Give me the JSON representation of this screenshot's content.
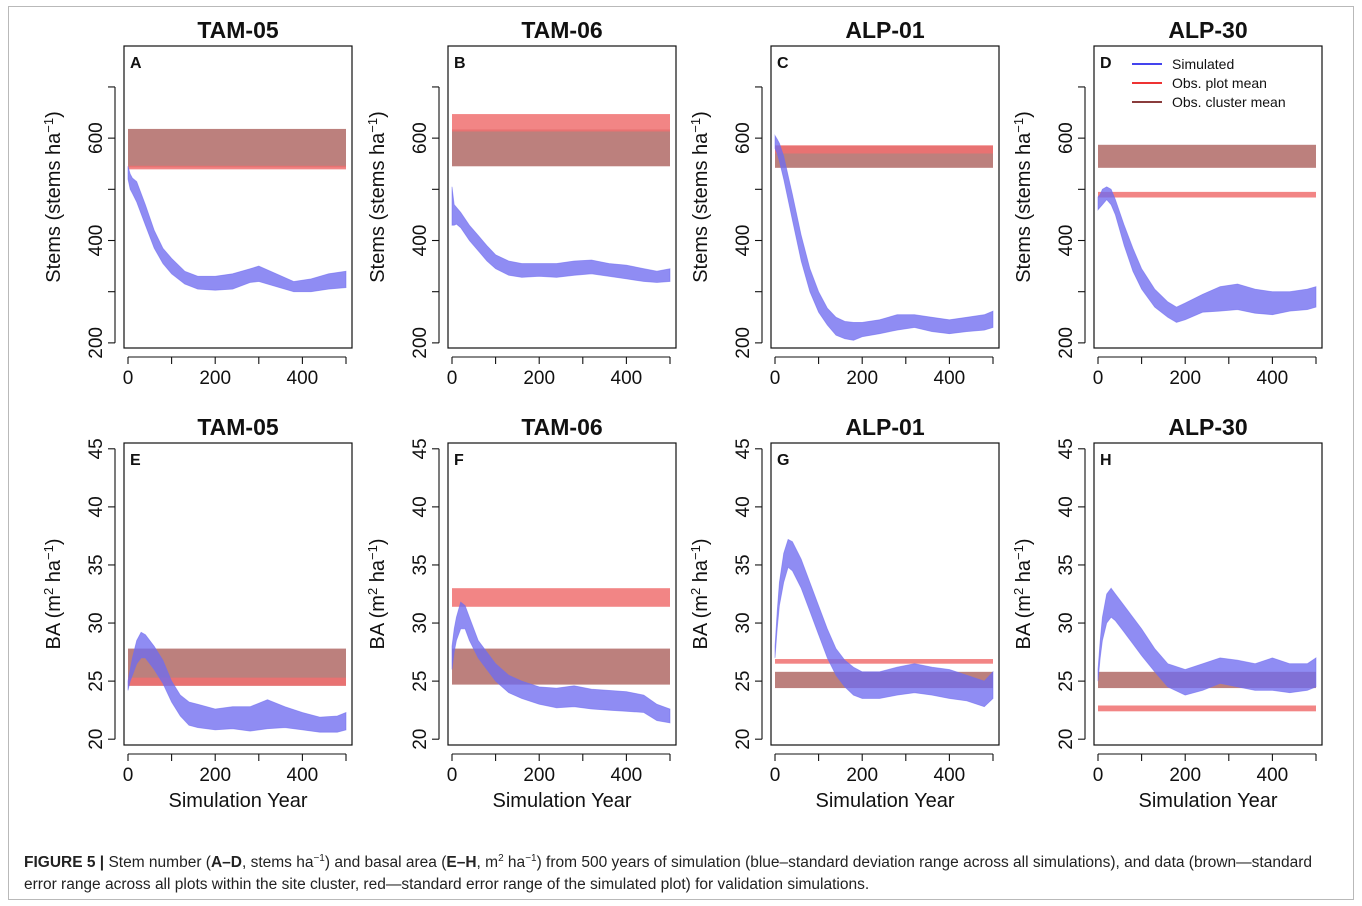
{
  "colors": {
    "simulated": "#6f6cf0",
    "obs_plot": "#f07070",
    "obs_cluster": "#b06a66",
    "obs_plot_line": "#ee2f2f",
    "obs_cluster_line": "#7a2f2f"
  },
  "legend": {
    "items": [
      {
        "label": "Simulated",
        "color": "#4444ee"
      },
      {
        "label": "Obs. plot mean",
        "color": "#ee3333"
      },
      {
        "label": "Obs. cluster mean",
        "color": "#8a3c3c"
      }
    ]
  },
  "caption": {
    "figure_label": "FIGURE 5 |",
    "t1": " Stem number (",
    "b1": "A–D",
    "t2": ", stems ha",
    "s1": "−1",
    "t3": ") and basal area (",
    "b2": "E–H",
    "t4": ", m",
    "s2": "2",
    "t5": " ha",
    "s3": "−1",
    "t6": ") from 500 years of simulation (blue–standard deviation range across all simulations), and data (brown—standard error range across all plots within the site cluster, red—standard error range of the simulated plot) for validation simulations."
  },
  "chart_data": [
    {
      "type": "area",
      "panel": "A",
      "title": "TAM-05",
      "xlabel": "",
      "ylabel_main": "Stems (stems ha",
      "ylabel_sup": "−1",
      "ylabel_end": ")",
      "xlim": [
        0,
        500
      ],
      "ylim": [
        190,
        780
      ],
      "xticks": [
        0,
        200,
        400
      ],
      "yticks": [
        200,
        400,
        600
      ],
      "obs_cluster": [
        543,
        618
      ],
      "obs_plot": [
        539,
        546
      ],
      "simulated": {
        "x": [
          0,
          5,
          10,
          20,
          40,
          60,
          80,
          100,
          130,
          160,
          200,
          240,
          280,
          300,
          340,
          380,
          420,
          460,
          500
        ],
        "low": [
          520,
          500,
          492,
          475,
          430,
          385,
          355,
          335,
          315,
          305,
          303,
          305,
          318,
          320,
          310,
          300,
          300,
          305,
          308
        ],
        "high": [
          545,
          530,
          522,
          515,
          470,
          420,
          385,
          365,
          340,
          330,
          330,
          335,
          345,
          350,
          335,
          320,
          325,
          335,
          340
        ]
      }
    },
    {
      "type": "area",
      "panel": "B",
      "title": "TAM-06",
      "xlabel": "",
      "ylabel_main": "Stems (stems ha",
      "ylabel_sup": "−1",
      "ylabel_end": ")",
      "xlim": [
        0,
        500
      ],
      "ylim": [
        190,
        780
      ],
      "xticks": [
        0,
        200,
        400
      ],
      "yticks": [
        200,
        400,
        600
      ],
      "obs_cluster": [
        545,
        617
      ],
      "obs_plot": [
        613,
        647
      ],
      "simulated": {
        "x": [
          0,
          5,
          10,
          20,
          40,
          60,
          80,
          100,
          130,
          160,
          200,
          240,
          280,
          320,
          360,
          400,
          440,
          470,
          500
        ],
        "low": [
          430,
          430,
          432,
          425,
          400,
          380,
          360,
          345,
          332,
          328,
          330,
          328,
          332,
          335,
          330,
          325,
          320,
          318,
          320
        ],
        "high": [
          505,
          470,
          465,
          455,
          430,
          410,
          390,
          372,
          360,
          355,
          355,
          355,
          360,
          362,
          355,
          352,
          345,
          340,
          345
        ]
      }
    },
    {
      "type": "area",
      "panel": "C",
      "title": "ALP-01",
      "xlabel": "",
      "ylabel_main": "Stems (stems ha",
      "ylabel_sup": "−1",
      "ylabel_end": ")",
      "xlim": [
        0,
        500
      ],
      "ylim": [
        190,
        780
      ],
      "xticks": [
        0,
        200,
        400
      ],
      "yticks": [
        200,
        400,
        600
      ],
      "obs_cluster": [
        542,
        585
      ],
      "obs_plot": [
        570,
        586
      ],
      "simulated": {
        "x": [
          0,
          5,
          10,
          20,
          40,
          60,
          80,
          100,
          120,
          140,
          160,
          180,
          200,
          240,
          280,
          320,
          360,
          400,
          440,
          480,
          500
        ],
        "low": [
          580,
          570,
          555,
          520,
          440,
          360,
          300,
          260,
          235,
          215,
          208,
          205,
          212,
          218,
          225,
          230,
          222,
          218,
          222,
          225,
          230
        ],
        "high": [
          605,
          598,
          590,
          565,
          490,
          410,
          345,
          300,
          268,
          250,
          242,
          240,
          240,
          245,
          255,
          255,
          250,
          245,
          250,
          255,
          262
        ]
      }
    },
    {
      "type": "area",
      "panel": "D",
      "title": "ALP-30",
      "xlabel": "",
      "ylabel_main": "Stems (stems ha",
      "ylabel_sup": "−1",
      "ylabel_end": ")",
      "xlim": [
        0,
        500
      ],
      "ylim": [
        190,
        780
      ],
      "xticks": [
        0,
        200,
        400
      ],
      "yticks": [
        200,
        400,
        600
      ],
      "obs_cluster": [
        542,
        587
      ],
      "obs_plot": [
        484,
        495
      ],
      "simulated": {
        "x": [
          0,
          5,
          10,
          20,
          30,
          40,
          60,
          80,
          100,
          130,
          160,
          180,
          200,
          240,
          280,
          320,
          360,
          400,
          440,
          480,
          500
        ],
        "low": [
          460,
          465,
          470,
          480,
          470,
          450,
          390,
          340,
          305,
          270,
          250,
          240,
          245,
          260,
          262,
          265,
          258,
          255,
          262,
          265,
          270
        ],
        "high": [
          485,
          490,
          500,
          505,
          500,
          480,
          430,
          385,
          345,
          305,
          280,
          270,
          278,
          295,
          310,
          315,
          305,
          300,
          300,
          305,
          310
        ]
      }
    },
    {
      "type": "area",
      "panel": "E",
      "title": "TAM-05",
      "xlabel": "Simulation Year",
      "ylabel_main": "BA (m",
      "ylabel_sup": "2",
      "ylabel_mid": " ha",
      "ylabel_sup2": "−1",
      "ylabel_end": ")",
      "xlim": [
        0,
        500
      ],
      "ylim": [
        19.5,
        45.5
      ],
      "xticks": [
        0,
        200,
        400
      ],
      "yticks": [
        20,
        25,
        30,
        35,
        40,
        45
      ],
      "obs_cluster": [
        24.6,
        27.8
      ],
      "obs_plot": [
        24.6,
        25.3
      ],
      "simulated": {
        "x": [
          0,
          5,
          10,
          20,
          30,
          40,
          60,
          80,
          100,
          120,
          140,
          160,
          200,
          240,
          280,
          320,
          360,
          400,
          440,
          480,
          500
        ],
        "low": [
          24.2,
          25.0,
          25.5,
          26.5,
          27.0,
          27.0,
          26.0,
          24.8,
          23.2,
          22.0,
          21.2,
          21.0,
          20.8,
          20.9,
          20.7,
          20.9,
          21.0,
          20.8,
          20.6,
          20.6,
          20.8
        ],
        "high": [
          25.0,
          26.0,
          27.0,
          28.5,
          29.2,
          29.0,
          28.0,
          26.8,
          25.0,
          23.8,
          23.2,
          23.0,
          22.6,
          22.8,
          22.8,
          23.4,
          22.8,
          22.3,
          21.9,
          22.0,
          22.3
        ]
      }
    },
    {
      "type": "area",
      "panel": "F",
      "title": "TAM-06",
      "xlabel": "Simulation Year",
      "ylabel_main": "BA (m",
      "ylabel_sup": "2",
      "ylabel_mid": " ha",
      "ylabel_sup2": "−1",
      "ylabel_end": ")",
      "xlim": [
        0,
        500
      ],
      "ylim": [
        19.5,
        45.5
      ],
      "xticks": [
        0,
        200,
        400
      ],
      "yticks": [
        20,
        25,
        30,
        35,
        40,
        45
      ],
      "obs_cluster": [
        24.7,
        27.8
      ],
      "obs_plot": [
        31.4,
        33.0
      ],
      "simulated": {
        "x": [
          0,
          5,
          10,
          20,
          30,
          40,
          60,
          80,
          100,
          130,
          160,
          200,
          240,
          280,
          320,
          360,
          400,
          440,
          470,
          500
        ],
        "low": [
          26.0,
          27.5,
          28.5,
          29.5,
          29.5,
          28.5,
          27.0,
          26.0,
          25.0,
          24.0,
          23.5,
          23.0,
          22.7,
          22.8,
          22.6,
          22.5,
          22.4,
          22.3,
          21.6,
          21.4
        ],
        "high": [
          28.0,
          29.5,
          30.5,
          31.8,
          31.5,
          30.5,
          28.5,
          27.5,
          26.5,
          25.5,
          25.0,
          24.5,
          24.4,
          24.6,
          24.3,
          24.2,
          24.1,
          23.8,
          23.0,
          22.6
        ]
      }
    },
    {
      "type": "area",
      "panel": "G",
      "title": "ALP-01",
      "xlabel": "Simulation Year",
      "ylabel_main": "BA (m",
      "ylabel_sup": "2",
      "ylabel_mid": " ha",
      "ylabel_sup2": "−1",
      "ylabel_end": ")",
      "xlim": [
        0,
        500
      ],
      "ylim": [
        19.5,
        45.5
      ],
      "xticks": [
        0,
        200,
        400
      ],
      "yticks": [
        20,
        25,
        30,
        35,
        40,
        45
      ],
      "obs_cluster": [
        24.4,
        25.8
      ],
      "obs_plot": [
        26.5,
        26.9
      ],
      "simulated": {
        "x": [
          0,
          5,
          10,
          20,
          30,
          40,
          60,
          80,
          100,
          120,
          140,
          160,
          180,
          200,
          240,
          280,
          320,
          360,
          400,
          440,
          480,
          500
        ],
        "low": [
          27.0,
          29.5,
          31.5,
          33.5,
          34.8,
          34.5,
          33.0,
          31.0,
          29.0,
          27.0,
          25.5,
          24.5,
          23.8,
          23.5,
          23.5,
          23.8,
          24.0,
          23.8,
          23.5,
          23.3,
          22.8,
          23.5
        ],
        "high": [
          28.0,
          31.0,
          33.5,
          36.0,
          37.2,
          37.0,
          35.5,
          33.5,
          31.5,
          29.5,
          27.8,
          26.8,
          26.2,
          25.8,
          25.8,
          26.2,
          26.5,
          26.2,
          26.0,
          25.5,
          25.0,
          25.8
        ]
      }
    },
    {
      "type": "area",
      "panel": "H",
      "title": "ALP-30",
      "xlabel": "Simulation Year",
      "ylabel_main": "BA (m",
      "ylabel_sup": "2",
      "ylabel_mid": " ha",
      "ylabel_sup2": "−1",
      "ylabel_end": ")",
      "xlim": [
        0,
        500
      ],
      "ylim": [
        19.5,
        45.5
      ],
      "xticks": [
        0,
        200,
        400
      ],
      "yticks": [
        20,
        25,
        30,
        35,
        40,
        45
      ],
      "obs_cluster": [
        24.4,
        25.8
      ],
      "obs_plot": [
        22.4,
        22.9
      ],
      "simulated": {
        "x": [
          0,
          5,
          10,
          20,
          30,
          40,
          60,
          80,
          100,
          130,
          160,
          200,
          240,
          280,
          320,
          360,
          400,
          440,
          480,
          500
        ],
        "low": [
          25.0,
          27.0,
          28.5,
          30.0,
          30.5,
          30.2,
          29.2,
          28.2,
          27.2,
          25.8,
          24.5,
          23.8,
          24.2,
          24.8,
          24.5,
          24.2,
          24.2,
          24.0,
          24.2,
          24.5
        ],
        "high": [
          26.0,
          28.5,
          30.5,
          32.5,
          33.0,
          32.5,
          31.5,
          30.5,
          29.5,
          27.8,
          26.5,
          26.0,
          26.5,
          27.0,
          26.8,
          26.5,
          27.0,
          26.5,
          26.5,
          27.0
        ]
      }
    }
  ]
}
